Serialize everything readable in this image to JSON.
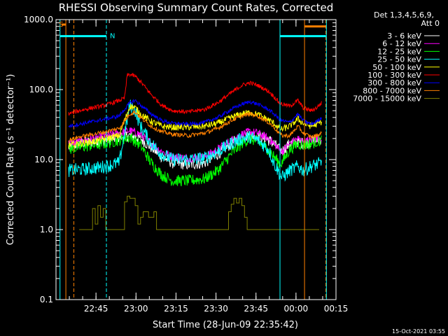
{
  "chart_data": {
    "type": "line",
    "title": "RHESSI Observing Summary Count Rates, Corrected",
    "xlabel": "Start Time (28-Jun-09 22:35:42)",
    "ylabel": "Corrected Count Rate (s⁻¹ detector⁻¹)",
    "y_scale": "log",
    "ylim": [
      0.1,
      1000
    ],
    "xlim_minutes": [
      -5.7,
      99.3
    ],
    "y_ticks": [
      "0.1",
      "1.0",
      "10.0",
      "100.0",
      "1000.0"
    ],
    "x_ticks": [
      {
        "label": "22:45",
        "minute": 9.3
      },
      {
        "label": "23:00",
        "minute": 24.3
      },
      {
        "label": "23:15",
        "minute": 39.3
      },
      {
        "label": "23:30",
        "minute": 54.3
      },
      {
        "label": "23:45",
        "minute": 69.3
      },
      {
        "label": "00:00",
        "minute": 84.3
      },
      {
        "label": "00:15",
        "minute": 99.3
      }
    ],
    "legend_header": [
      "Det 1,3,4,5,6,9,",
      "Att 0"
    ],
    "legend_position": "right",
    "grid": false,
    "series": [
      {
        "name": "3 - 6 keV",
        "color": "#ffffff",
        "points": [
          [
            -1,
            15
          ],
          [
            3,
            17
          ],
          [
            8,
            18
          ],
          [
            13,
            19
          ],
          [
            18,
            21
          ],
          [
            22,
            22
          ],
          [
            26,
            20
          ],
          [
            30,
            15
          ],
          [
            34,
            11
          ],
          [
            38,
            9
          ],
          [
            44,
            8.5
          ],
          [
            50,
            9
          ],
          [
            55,
            12
          ],
          [
            60,
            17
          ],
          [
            64,
            21
          ],
          [
            67,
            22
          ],
          [
            70,
            22
          ],
          [
            74,
            19
          ],
          [
            76,
            17
          ],
          [
            78,
            14
          ],
          [
            79,
            13
          ],
          [
            82,
            17
          ],
          [
            85,
            18
          ],
          [
            87,
            17
          ],
          [
            90,
            18
          ],
          [
            92,
            19
          ],
          [
            94,
            20
          ]
        ]
      },
      {
        "name": "6 - 12 keV",
        "color": "#ff00ff",
        "points": [
          [
            -1,
            17
          ],
          [
            3,
            18
          ],
          [
            8,
            20
          ],
          [
            13,
            22
          ],
          [
            18,
            24
          ],
          [
            22,
            26
          ],
          [
            26,
            23
          ],
          [
            30,
            17
          ],
          [
            34,
            13
          ],
          [
            38,
            11
          ],
          [
            44,
            10.5
          ],
          [
            50,
            11
          ],
          [
            55,
            14
          ],
          [
            60,
            19
          ],
          [
            64,
            23
          ],
          [
            67,
            25
          ],
          [
            70,
            24
          ],
          [
            74,
            20
          ],
          [
            76,
            17
          ],
          [
            78,
            14
          ],
          [
            79,
            13
          ],
          [
            82,
            17
          ],
          [
            85,
            20
          ],
          [
            87,
            18
          ],
          [
            90,
            19
          ],
          [
            92,
            20
          ],
          [
            94,
            21
          ]
        ]
      },
      {
        "name": "12 - 25 keV",
        "color": "#00ff00",
        "points": [
          [
            -1,
            14
          ],
          [
            3,
            15
          ],
          [
            8,
            16
          ],
          [
            13,
            17
          ],
          [
            18,
            19
          ],
          [
            22,
            21
          ],
          [
            26,
            16
          ],
          [
            30,
            9
          ],
          [
            34,
            6
          ],
          [
            38,
            5
          ],
          [
            44,
            5
          ],
          [
            50,
            5.3
          ],
          [
            55,
            7
          ],
          [
            60,
            12
          ],
          [
            64,
            17
          ],
          [
            67,
            20
          ],
          [
            70,
            18
          ],
          [
            74,
            14
          ],
          [
            76,
            11
          ],
          [
            78,
            9
          ],
          [
            79,
            9
          ],
          [
            82,
            14
          ],
          [
            85,
            17
          ],
          [
            87,
            16
          ],
          [
            90,
            17
          ],
          [
            92,
            18
          ],
          [
            94,
            19
          ]
        ]
      },
      {
        "name": "25 - 50 keV",
        "color": "#00ffff",
        "points": [
          [
            -1,
            7
          ],
          [
            3,
            7.2
          ],
          [
            8,
            7.5
          ],
          [
            13,
            8
          ],
          [
            18,
            9
          ],
          [
            22,
            60
          ],
          [
            24,
            50
          ],
          [
            26,
            30
          ],
          [
            30,
            17
          ],
          [
            34,
            12
          ],
          [
            38,
            10
          ],
          [
            44,
            10
          ],
          [
            50,
            10.5
          ],
          [
            55,
            13
          ],
          [
            60,
            17
          ],
          [
            64,
            20
          ],
          [
            67,
            21
          ],
          [
            70,
            19
          ],
          [
            74,
            14
          ],
          [
            76,
            9
          ],
          [
            78,
            6.5
          ],
          [
            79,
            5.5
          ],
          [
            82,
            7
          ],
          [
            85,
            8
          ],
          [
            87,
            7
          ],
          [
            90,
            8
          ],
          [
            92,
            8.5
          ],
          [
            94,
            9
          ]
        ]
      },
      {
        "name": "50 - 100 keV",
        "color": "#ffff00",
        "points": [
          [
            -1,
            16
          ],
          [
            3,
            17
          ],
          [
            8,
            18
          ],
          [
            13,
            20
          ],
          [
            18,
            22
          ],
          [
            22,
            58
          ],
          [
            24,
            55
          ],
          [
            26,
            45
          ],
          [
            30,
            35
          ],
          [
            34,
            30
          ],
          [
            38,
            29
          ],
          [
            44,
            29
          ],
          [
            50,
            30
          ],
          [
            55,
            33
          ],
          [
            60,
            40
          ],
          [
            64,
            45
          ],
          [
            67,
            47
          ],
          [
            70,
            44
          ],
          [
            74,
            37
          ],
          [
            76,
            33
          ],
          [
            78,
            28
          ],
          [
            79,
            27
          ],
          [
            82,
            30
          ],
          [
            85,
            38
          ],
          [
            87,
            33
          ],
          [
            90,
            30
          ],
          [
            92,
            32
          ],
          [
            94,
            35
          ]
        ]
      },
      {
        "name": "100 - 300 keV",
        "color": "#ff0000",
        "points": [
          [
            -1,
            45
          ],
          [
            3,
            50
          ],
          [
            8,
            55
          ],
          [
            13,
            60
          ],
          [
            18,
            70
          ],
          [
            20,
            75
          ],
          [
            21,
            160
          ],
          [
            22,
            165
          ],
          [
            24,
            155
          ],
          [
            26,
            130
          ],
          [
            30,
            85
          ],
          [
            34,
            60
          ],
          [
            38,
            50
          ],
          [
            44,
            48
          ],
          [
            50,
            52
          ],
          [
            55,
            65
          ],
          [
            60,
            90
          ],
          [
            64,
            115
          ],
          [
            67,
            125
          ],
          [
            70,
            115
          ],
          [
            74,
            95
          ],
          [
            76,
            80
          ],
          [
            78,
            65
          ],
          [
            79,
            62
          ],
          [
            82,
            58
          ],
          [
            85,
            70
          ],
          [
            87,
            55
          ],
          [
            90,
            50
          ],
          [
            92,
            55
          ],
          [
            94,
            65
          ]
        ]
      },
      {
        "name": "300 - 800 keV",
        "color": "#0000ff",
        "points": [
          [
            -1,
            30
          ],
          [
            3,
            32
          ],
          [
            8,
            35
          ],
          [
            13,
            38
          ],
          [
            18,
            42
          ],
          [
            22,
            65
          ],
          [
            24,
            70
          ],
          [
            26,
            60
          ],
          [
            30,
            45
          ],
          [
            34,
            36
          ],
          [
            38,
            33
          ],
          [
            44,
            32
          ],
          [
            50,
            34
          ],
          [
            55,
            40
          ],
          [
            60,
            52
          ],
          [
            64,
            62
          ],
          [
            67,
            67
          ],
          [
            70,
            62
          ],
          [
            74,
            52
          ],
          [
            76,
            45
          ],
          [
            78,
            38
          ],
          [
            79,
            36
          ],
          [
            82,
            34
          ],
          [
            85,
            45
          ],
          [
            87,
            36
          ],
          [
            90,
            32
          ],
          [
            92,
            35
          ],
          [
            94,
            40
          ]
        ]
      },
      {
        "name": "800 - 7000 keV",
        "color": "#ff8000",
        "points": [
          [
            -1,
            19
          ],
          [
            3,
            21
          ],
          [
            8,
            23
          ],
          [
            13,
            25
          ],
          [
            18,
            28
          ],
          [
            22,
            45
          ],
          [
            24,
            48
          ],
          [
            26,
            40
          ],
          [
            30,
            30
          ],
          [
            34,
            25
          ],
          [
            38,
            23
          ],
          [
            44,
            22
          ],
          [
            50,
            24
          ],
          [
            55,
            28
          ],
          [
            60,
            36
          ],
          [
            64,
            42
          ],
          [
            67,
            45
          ],
          [
            70,
            42
          ],
          [
            74,
            34
          ],
          [
            76,
            29
          ],
          [
            78,
            24
          ],
          [
            79,
            22
          ],
          [
            82,
            22
          ],
          [
            85,
            30
          ],
          [
            87,
            24
          ],
          [
            90,
            21
          ],
          [
            92,
            22
          ],
          [
            94,
            24
          ]
        ]
      },
      {
        "name": "7000 - 15000 keV",
        "color": "#808000",
        "points": [
          [
            3,
            1
          ],
          [
            7,
            1
          ],
          [
            8,
            2
          ],
          [
            9,
            1.2
          ],
          [
            10,
            2.2
          ],
          [
            11,
            1.5
          ],
          [
            12,
            2
          ],
          [
            13,
            1
          ],
          [
            18,
            1
          ],
          [
            20,
            2.5
          ],
          [
            21,
            3
          ],
          [
            22,
            2.8
          ],
          [
            24,
            2.2
          ],
          [
            25,
            1.2
          ],
          [
            26,
            1.5
          ],
          [
            27,
            1.8
          ],
          [
            29,
            1.5
          ],
          [
            31,
            1.8
          ],
          [
            32,
            1
          ],
          [
            34,
            1
          ],
          [
            45,
            1
          ],
          [
            55,
            1
          ],
          [
            58,
            1
          ],
          [
            59,
            1.8
          ],
          [
            60,
            2.3
          ],
          [
            61,
            2.8
          ],
          [
            62,
            2.4
          ],
          [
            63,
            2.8
          ],
          [
            64,
            2.2
          ],
          [
            65,
            1.5
          ],
          [
            66,
            1
          ],
          [
            69,
            1
          ],
          [
            82,
            1
          ],
          [
            86,
            1
          ],
          [
            90,
            1
          ],
          [
            93,
            1
          ]
        ]
      }
    ],
    "annotations": {
      "flag_bars": [
        {
          "label": "S",
          "color": "#ff8000",
          "x_min": [
            -3.5,
            -2.1
          ],
          "level": 850
        },
        {
          "label": "N",
          "color": "#00ffff",
          "x_min": [
            -4.2,
            13.2
          ],
          "level": 580
        },
        {
          "color": "#ff8000",
          "x_min": [
            87.5,
            95.5
          ],
          "level": 800
        },
        {
          "color": "#00ffff",
          "x_min": [
            78.3,
            95.5
          ],
          "level": 580
        }
      ],
      "vertical_lines": [
        {
          "minute": -4.2,
          "color": "#00ffff",
          "style": "solid"
        },
        {
          "minute": -2.0,
          "color": "#ff8000",
          "style": "solid"
        },
        {
          "minute": 1.0,
          "color": "#ff8000",
          "style": "dashed"
        },
        {
          "minute": 13.2,
          "color": "#00ffff",
          "style": "dashed"
        },
        {
          "minute": 78.3,
          "color": "#00ffff",
          "style": "solid"
        },
        {
          "minute": 87.5,
          "color": "#ff8000",
          "style": "solid"
        },
        {
          "minute": 95.5,
          "color": "#ff8000",
          "style": "dashed"
        },
        {
          "minute": 95.7,
          "color": "#00ffff",
          "style": "solid"
        }
      ]
    },
    "timestamp": "15-Oct-2021 03:55"
  }
}
